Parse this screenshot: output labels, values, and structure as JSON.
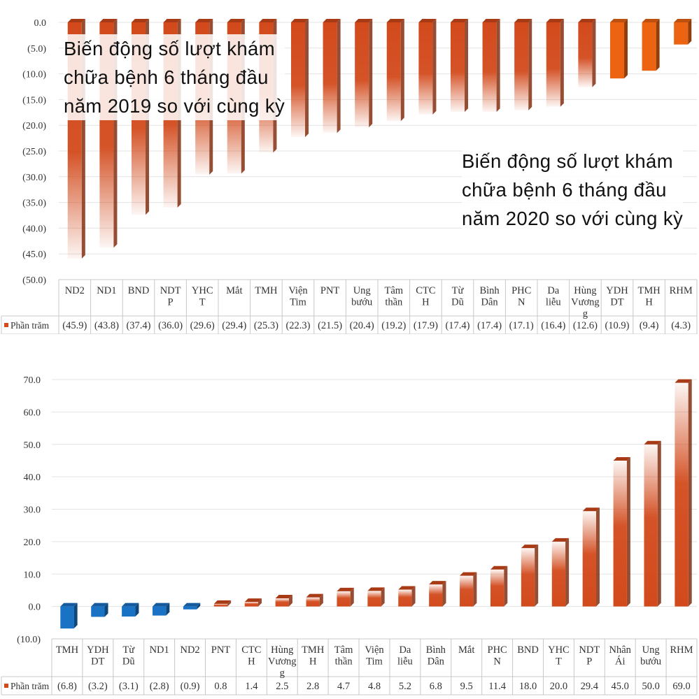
{
  "chart_data": [
    {
      "type": "bar",
      "title": "Biến động số lượt khám chữa bệnh 6 tháng đầu năm 2020 so với cùng kỳ",
      "title_lines": [
        "Biến động số lượt khám",
        "chữa bệnh 6 tháng đầu",
        "năm 2020 so với cùng kỳ"
      ],
      "categories": [
        "ND2",
        "ND1",
        "BND",
        "NDTP",
        "YHCT",
        "Mắt",
        "TMH",
        "Viện Tim",
        "PNT",
        "Ung bướu",
        "Tâm thần",
        "CTCH",
        "Từ Dũ",
        "Bình Dân",
        "PHCN",
        "Da liễu",
        "Hùng Vương",
        "YDHDT",
        "TMHH",
        "RHM"
      ],
      "category_lines": [
        [
          "ND2"
        ],
        [
          "ND1"
        ],
        [
          "BND"
        ],
        [
          "NDT",
          "P"
        ],
        [
          "YHC",
          "T"
        ],
        [
          "Mắt"
        ],
        [
          "TMH"
        ],
        [
          "Viện",
          "Tim"
        ],
        [
          "PNT"
        ],
        [
          "Ung",
          "bướu"
        ],
        [
          "Tâm",
          "thần"
        ],
        [
          "CTC",
          "H"
        ],
        [
          "Từ",
          "Dũ"
        ],
        [
          "Bình",
          "Dân"
        ],
        [
          "PHC",
          "N"
        ],
        [
          "Da",
          "liễu"
        ],
        [
          "Hùng",
          "Vương",
          "g"
        ],
        [
          "YDH",
          "DT"
        ],
        [
          "TMH",
          "H"
        ],
        [
          "RHM"
        ]
      ],
      "series": [
        {
          "name": "Phần trăm",
          "values": [
            -45.9,
            -43.8,
            -37.4,
            -36.0,
            -29.6,
            -29.4,
            -25.3,
            -22.3,
            -21.5,
            -20.4,
            -19.2,
            -17.9,
            -17.4,
            -17.4,
            -17.1,
            -16.4,
            -12.6,
            -10.9,
            -9.4,
            -4.3
          ],
          "value_labels": [
            "(45.9)",
            "(43.8)",
            "(37.4)",
            "(36.0)",
            "(29.6)",
            "(29.4)",
            "(25.3)",
            "(22.3)",
            "(21.5)",
            "(20.4)",
            "(19.2)",
            "(17.9)",
            "(17.4)",
            "(17.4)",
            "(17.1)",
            "(16.4)",
            "(12.6)",
            "(10.9)",
            "(9.4)",
            "(4.3)"
          ]
        }
      ],
      "ylim": [
        -50,
        0
      ],
      "yticks": [
        0,
        -5,
        -10,
        -15,
        -20,
        -25,
        -30,
        -35,
        -40,
        -45,
        -50
      ],
      "ytick_labels": [
        "0.0",
        "(5.0)",
        "(10.0)",
        "(15.0)",
        "(20.0)",
        "(25.0)",
        "(30.0)",
        "(35.0)",
        "(40.0)",
        "(45.0)",
        "(50.0)"
      ],
      "grid": true,
      "data_table": true,
      "colors": {
        "gradient": "#d24a1c",
        "solid": "#ec6412",
        "solid_count": 3
      }
    },
    {
      "type": "bar",
      "title": "Biến động số lượt khám chữa bệnh 6 tháng đầu năm 2019 so với cùng kỳ",
      "title_lines": [
        "Biến động số lượt khám",
        "chữa bệnh 6 tháng đầu",
        "năm 2019 so với cùng kỳ"
      ],
      "categories": [
        "TMH",
        "YDHDT",
        "Từ Dũ",
        "ND1",
        "ND2",
        "PNT",
        "CTCH",
        "Hùng Vương",
        "TMHH",
        "Tâm thần",
        "Viện Tim",
        "Da liễu",
        "Bình Dân",
        "Mắt",
        "PHCN",
        "BND",
        "YHCT",
        "NDTP",
        "Nhân Ái",
        "Ung bướu",
        "RHM"
      ],
      "category_lines": [
        [
          "TMH"
        ],
        [
          "YDH",
          "DT"
        ],
        [
          "Từ",
          "Dũ"
        ],
        [
          "ND1"
        ],
        [
          "ND2"
        ],
        [
          "PNT"
        ],
        [
          "CTC",
          "H"
        ],
        [
          "Hùng",
          "Vương",
          "g"
        ],
        [
          "TMH",
          "H"
        ],
        [
          "Tâm",
          "thần"
        ],
        [
          "Viện",
          "Tim"
        ],
        [
          "Da",
          "liễu"
        ],
        [
          "Bình",
          "Dân"
        ],
        [
          "Mắt"
        ],
        [
          "PHC",
          "N"
        ],
        [
          "BND"
        ],
        [
          "YHC",
          "T"
        ],
        [
          "NDT",
          "P"
        ],
        [
          "Nhân",
          "Ái"
        ],
        [
          "Ung",
          "bướu"
        ],
        [
          "RHM"
        ]
      ],
      "series": [
        {
          "name": "Phần trăm",
          "values": [
            -6.8,
            -3.2,
            -3.1,
            -2.8,
            -0.9,
            0.8,
            1.4,
            2.5,
            2.8,
            4.7,
            4.8,
            5.2,
            6.8,
            9.5,
            11.4,
            18.0,
            20.0,
            29.4,
            45.0,
            50.0,
            69.0
          ],
          "value_labels": [
            "(6.8)",
            "(3.2)",
            "(3.1)",
            "(2.8)",
            "(0.9)",
            "0.8",
            "1.4",
            "2.5",
            "2.8",
            "4.7",
            "4.8",
            "5.2",
            "6.8",
            "9.5",
            "11.4",
            "18.0",
            "20.0",
            "29.4",
            "45.0",
            "50.0",
            "69.0"
          ]
        }
      ],
      "ylim": [
        -10,
        70
      ],
      "yticks": [
        70,
        60,
        50,
        40,
        30,
        20,
        10,
        0,
        -10
      ],
      "ytick_labels": [
        "70.0",
        "60.0",
        "50.0",
        "40.0",
        "30.0",
        "20.0",
        "10.0",
        "0.0",
        "(10.0)"
      ],
      "grid": true,
      "data_table": true,
      "colors": {
        "positive": "#d24a1c",
        "negative": "#1a72c4"
      }
    }
  ]
}
